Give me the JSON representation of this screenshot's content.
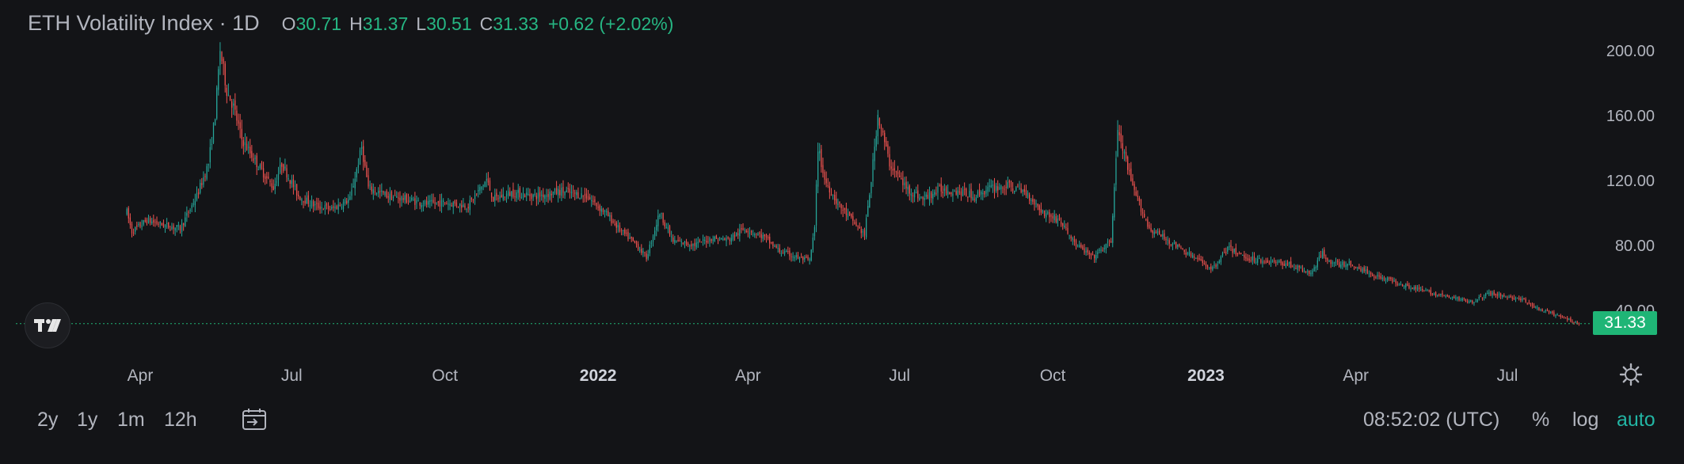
{
  "legend": {
    "symbol": "ETH Volatility Index · 1D",
    "o_label": "O",
    "o_value": "30.71",
    "h_label": "H",
    "h_value": "31.37",
    "l_label": "L",
    "l_value": "30.51",
    "c_label": "C",
    "c_value": "31.33",
    "change": "+0.62 (+2.02%)"
  },
  "colors": {
    "background": "#131417",
    "up": "#26a69a",
    "down": "#ef5350",
    "accent": "#22b5a4",
    "last_price_tag": "#1fb576",
    "text": "#b2b5be"
  },
  "logo": {
    "icon": "tradingview-logo-icon"
  },
  "last_price_label": "31.33",
  "settings_icon": "gear-icon",
  "bottom_bar": {
    "ranges": [
      "2y",
      "1y",
      "1m",
      "12h"
    ],
    "date_range_icon": "calendar-range-icon",
    "clock": "08:52:02 (UTC)",
    "percent_label": "%",
    "log_label": "log",
    "auto_label": "auto"
  },
  "chart_data": {
    "type": "candlestick",
    "title": "ETH Volatility Index · 1D",
    "interval": "1D",
    "x_start": "2021-03-24",
    "x_end": "2023-08-13",
    "ylim": [
      22,
      218
    ],
    "y_ticks": [
      40,
      80,
      120,
      160,
      200
    ],
    "y_tick_labels": [
      "40.00",
      "80.00",
      "120.00",
      "160.00",
      "200.00"
    ],
    "x_ticks": [
      {
        "date": "2021-04-01",
        "label": "Apr",
        "bold": false
      },
      {
        "date": "2021-07-01",
        "label": "Jul",
        "bold": false
      },
      {
        "date": "2021-10-01",
        "label": "Oct",
        "bold": false
      },
      {
        "date": "2022-01-01",
        "label": "2022",
        "bold": true
      },
      {
        "date": "2022-04-01",
        "label": "Apr",
        "bold": false
      },
      {
        "date": "2022-07-01",
        "label": "Jul",
        "bold": false
      },
      {
        "date": "2022-10-01",
        "label": "Oct",
        "bold": false
      },
      {
        "date": "2023-01-01",
        "label": "2023",
        "bold": true
      },
      {
        "date": "2023-04-01",
        "label": "Apr",
        "bold": false
      },
      {
        "date": "2023-07-01",
        "label": "Jul",
        "bold": false
      }
    ],
    "last_close": 31.33,
    "close_trend": [
      [
        "2021-03-24",
        100
      ],
      [
        "2021-03-27",
        88
      ],
      [
        "2021-04-05",
        95
      ],
      [
        "2021-04-15",
        92
      ],
      [
        "2021-04-25",
        90
      ],
      [
        "2021-05-05",
        110
      ],
      [
        "2021-05-12",
        130
      ],
      [
        "2021-05-16",
        160
      ],
      [
        "2021-05-19",
        200
      ],
      [
        "2021-05-23",
        175
      ],
      [
        "2021-05-27",
        165
      ],
      [
        "2021-06-01",
        145
      ],
      [
        "2021-06-10",
        130
      ],
      [
        "2021-06-20",
        115
      ],
      [
        "2021-06-25",
        130
      ],
      [
        "2021-07-05",
        110
      ],
      [
        "2021-07-15",
        104
      ],
      [
        "2021-07-25",
        102
      ],
      [
        "2021-08-05",
        108
      ],
      [
        "2021-08-12",
        140
      ],
      [
        "2021-08-16",
        115
      ],
      [
        "2021-08-28",
        110
      ],
      [
        "2021-09-08",
        108
      ],
      [
        "2021-09-20",
        105
      ],
      [
        "2021-10-01",
        106
      ],
      [
        "2021-10-15",
        104
      ],
      [
        "2021-10-26",
        120
      ],
      [
        "2021-10-30",
        108
      ],
      [
        "2021-11-10",
        112
      ],
      [
        "2021-11-25",
        110
      ],
      [
        "2021-12-10",
        113
      ],
      [
        "2021-12-25",
        110
      ],
      [
        "2022-01-05",
        100
      ],
      [
        "2022-01-15",
        88
      ],
      [
        "2022-01-24",
        80
      ],
      [
        "2022-01-30",
        72
      ],
      [
        "2022-02-07",
        100
      ],
      [
        "2022-02-15",
        82
      ],
      [
        "2022-02-28",
        80
      ],
      [
        "2022-03-10",
        84
      ],
      [
        "2022-03-20",
        83
      ],
      [
        "2022-03-30",
        90
      ],
      [
        "2022-04-10",
        85
      ],
      [
        "2022-04-20",
        76
      ],
      [
        "2022-05-01",
        72
      ],
      [
        "2022-05-08",
        70
      ],
      [
        "2022-05-11",
        90
      ],
      [
        "2022-05-13",
        140
      ],
      [
        "2022-05-17",
        120
      ],
      [
        "2022-05-25",
        105
      ],
      [
        "2022-06-05",
        92
      ],
      [
        "2022-06-10",
        86
      ],
      [
        "2022-06-14",
        120
      ],
      [
        "2022-06-18",
        160
      ],
      [
        "2022-06-25",
        130
      ],
      [
        "2022-07-05",
        115
      ],
      [
        "2022-07-15",
        108
      ],
      [
        "2022-07-25",
        114
      ],
      [
        "2022-08-05",
        113
      ],
      [
        "2022-08-15",
        110
      ],
      [
        "2022-08-25",
        115
      ],
      [
        "2022-09-05",
        116
      ],
      [
        "2022-09-15",
        112
      ],
      [
        "2022-09-25",
        100
      ],
      [
        "2022-10-05",
        95
      ],
      [
        "2022-10-15",
        80
      ],
      [
        "2022-10-25",
        72
      ],
      [
        "2022-11-05",
        82
      ],
      [
        "2022-11-09",
        150
      ],
      [
        "2022-11-13",
        135
      ],
      [
        "2022-11-18",
        115
      ],
      [
        "2022-11-28",
        90
      ],
      [
        "2022-12-10",
        82
      ],
      [
        "2022-12-25",
        72
      ],
      [
        "2023-01-05",
        65
      ],
      [
        "2023-01-14",
        78
      ],
      [
        "2023-01-25",
        72
      ],
      [
        "2023-02-05",
        70
      ],
      [
        "2023-02-20",
        68
      ],
      [
        "2023-03-05",
        62
      ],
      [
        "2023-03-12",
        75
      ],
      [
        "2023-03-18",
        68
      ],
      [
        "2023-03-28",
        68
      ],
      [
        "2023-04-10",
        62
      ],
      [
        "2023-04-25",
        57
      ],
      [
        "2023-05-10",
        52
      ],
      [
        "2023-05-25",
        48
      ],
      [
        "2023-06-10",
        45
      ],
      [
        "2023-06-20",
        50
      ],
      [
        "2023-07-01",
        48
      ],
      [
        "2023-07-10",
        46
      ],
      [
        "2023-07-20",
        40
      ],
      [
        "2023-08-01",
        36
      ],
      [
        "2023-08-13",
        31.33
      ]
    ]
  }
}
